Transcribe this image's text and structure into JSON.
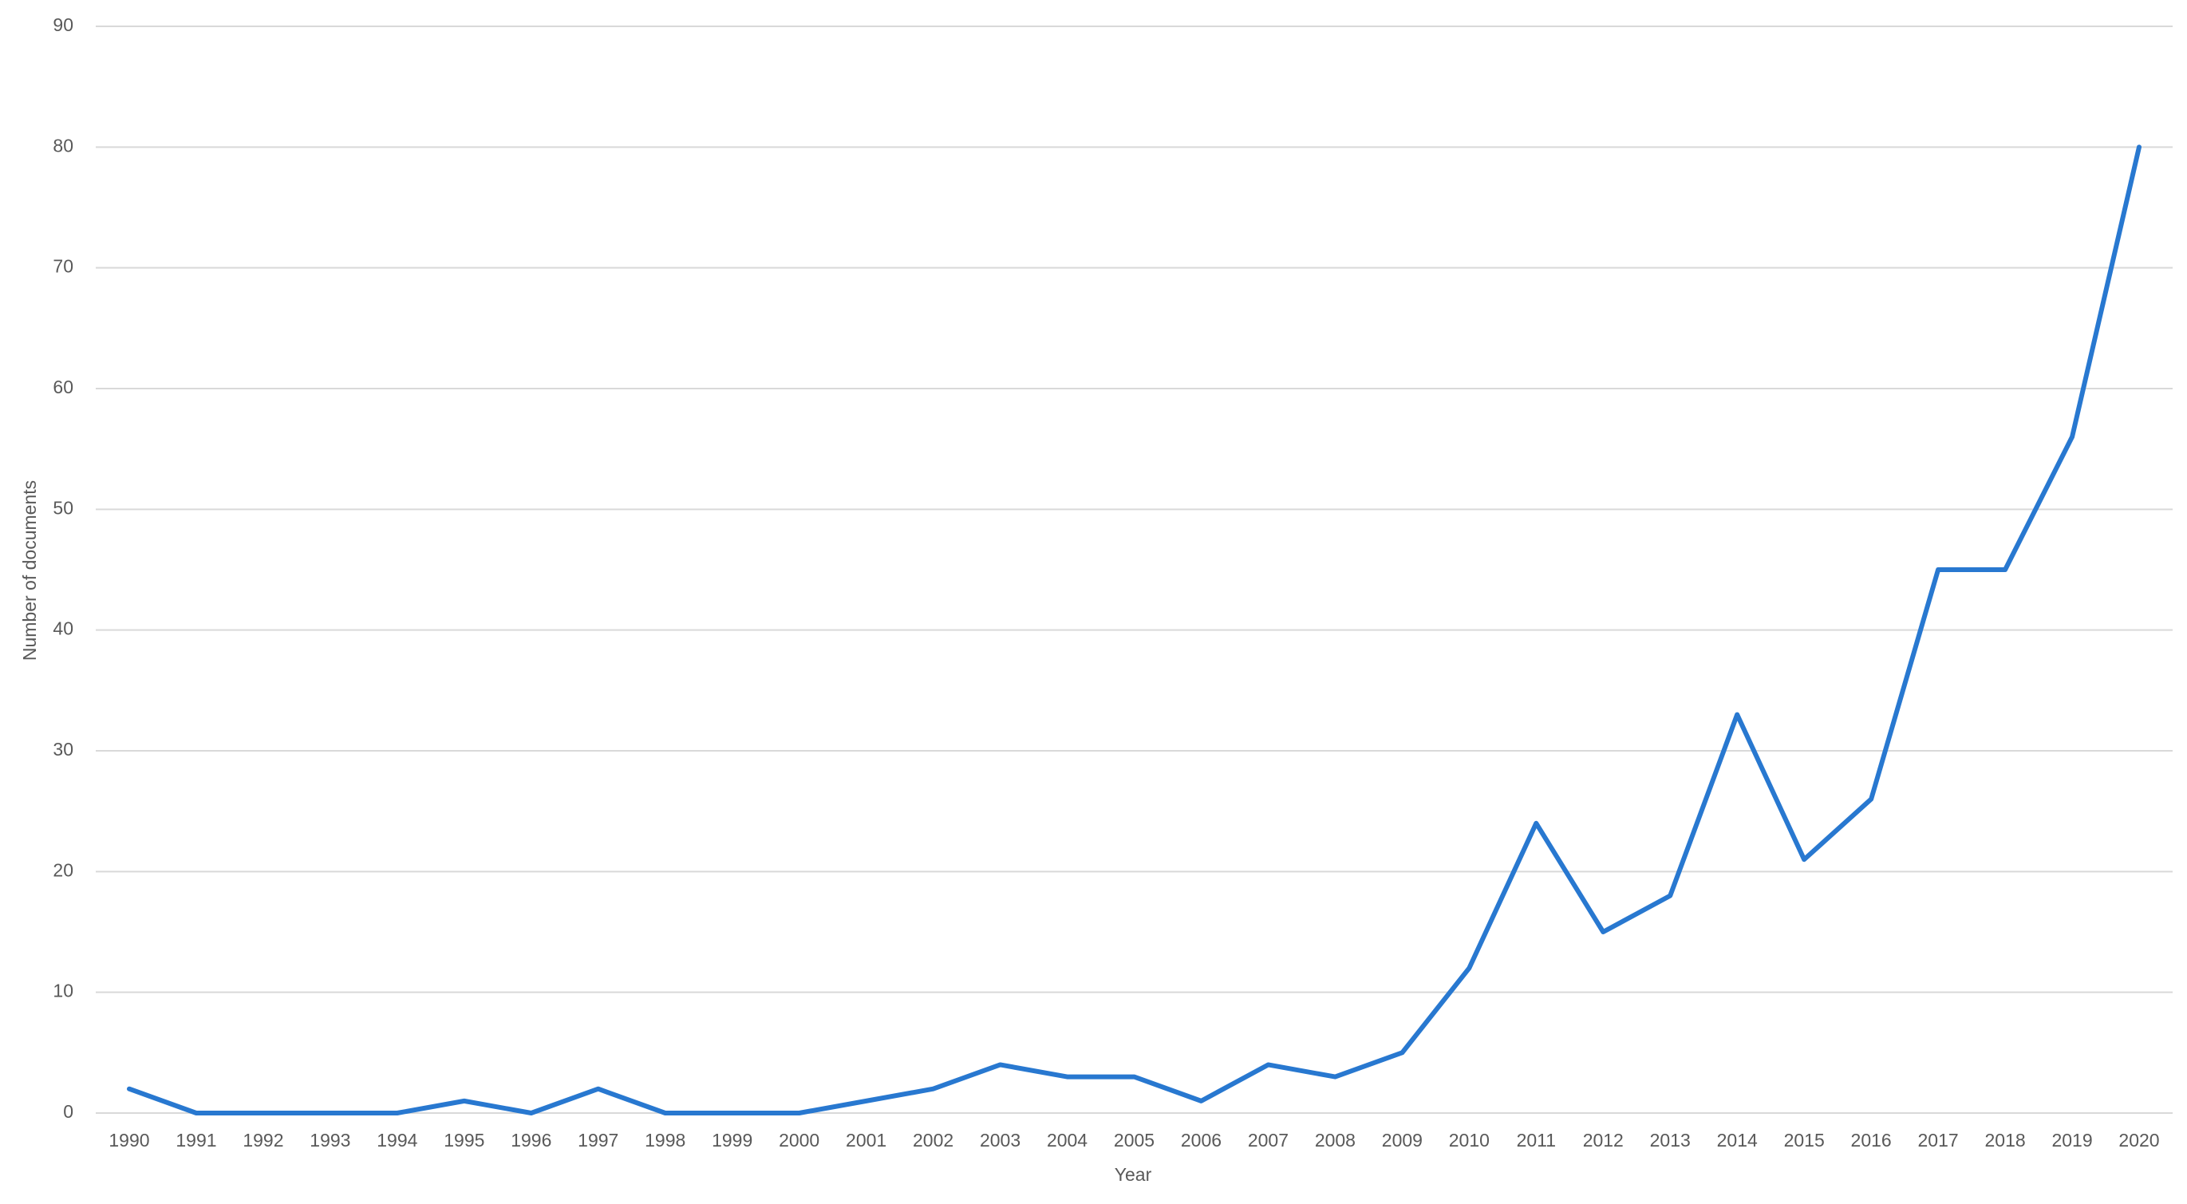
{
  "chart_data": {
    "type": "line",
    "x_label": "Year",
    "y_label": "Number of documents",
    "categories": [
      "1990",
      "1991",
      "1992",
      "1993",
      "1994",
      "1995",
      "1996",
      "1997",
      "1998",
      "1999",
      "2000",
      "2001",
      "2002",
      "2003",
      "2004",
      "2005",
      "2006",
      "2007",
      "2008",
      "2009",
      "2010",
      "2011",
      "2012",
      "2013",
      "2014",
      "2015",
      "2016",
      "2017",
      "2018",
      "2019",
      "2020"
    ],
    "values": [
      2,
      0,
      0,
      0,
      0,
      1,
      0,
      2,
      0,
      0,
      0,
      1,
      2,
      4,
      3,
      3,
      1,
      4,
      3,
      5,
      12,
      24,
      15,
      18,
      33,
      21,
      26,
      45,
      45,
      56,
      80
    ],
    "color": "#2878d0",
    "ylim": [
      0,
      90
    ],
    "yticks": [
      0,
      10,
      20,
      30,
      40,
      50,
      60,
      70,
      80,
      90
    ],
    "grid": true
  }
}
